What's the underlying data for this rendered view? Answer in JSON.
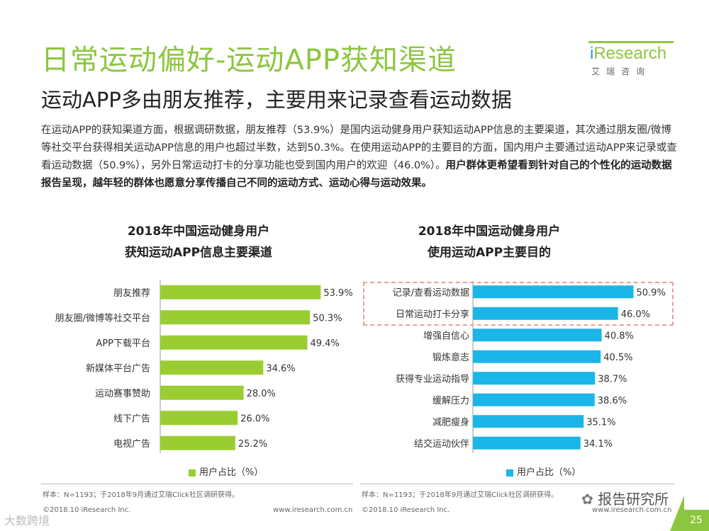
{
  "header": {
    "title": "日常运动偏好-运动APP获知渠道",
    "subtitle": "运动APP多由朋友推荐，主要用来记录查看运动数据",
    "logo_word_i": "i",
    "logo_word_rest": "Research",
    "logo_cn": "艾瑞咨询"
  },
  "body": {
    "text_plain": "在运动APP的获知渠道方面，根据调研数据，朋友推荐（53.9%）是国内运动健身用户获知运动APP信息的主要渠道，其次通过朋友圈/微博等社交平台获得相关运动APP信息的用户也超过半数，达到50.3%。在使用运动APP的主要目的方面，国内用户主要通过运动APP来记录或查看运动数据（50.9%），另外日常运动打卡的分享功能也受到国内用户的欢迎（46.0%）。",
    "text_bold": "用户群体更希望看到针对自己的个性化的运动数据报告呈现，越年轻的群体也愿意分享传播自己不同的运动方式、运动心得与运动效果。"
  },
  "chart_data": [
    {
      "type": "bar",
      "orientation": "horizontal",
      "title_line1": "2018年中国运动健身用户",
      "title_line2": "获知运动APP信息主要渠道",
      "categories": [
        "朋友推荐",
        "朋友圈/微博等社交平台",
        "APP下载平台",
        "新媒体平台广告",
        "运动赛事赞助",
        "线下广告",
        "电视广告"
      ],
      "values": [
        53.9,
        50.3,
        49.4,
        34.6,
        28.0,
        26.0,
        25.2
      ],
      "value_labels": [
        "53.9%",
        "50.3%",
        "49.4%",
        "34.6%",
        "28.0%",
        "26.0%",
        "25.2%"
      ],
      "xlim": [
        0,
        60
      ],
      "legend": "用户占比（%）",
      "color": "#9acd32"
    },
    {
      "type": "bar",
      "orientation": "horizontal",
      "title_line1": "2018年中国运动健身用户",
      "title_line2": "使用运动APP主要目的",
      "categories": [
        "记录/查看运动数据",
        "日常运动打卡分享",
        "增强自信心",
        "锻炼意志",
        "获得专业运动指导",
        "缓解压力",
        "减肥瘦身",
        "结交运动伙伴"
      ],
      "values": [
        50.9,
        46.0,
        40.8,
        40.5,
        38.7,
        38.6,
        35.1,
        34.1
      ],
      "value_labels": [
        "50.9%",
        "46.0%",
        "40.8%",
        "40.5%",
        "38.7%",
        "38.6%",
        "35.1%",
        "34.1%"
      ],
      "xlim": [
        0,
        60
      ],
      "legend": "用户占比（%）",
      "color": "#1bb5e8"
    }
  ],
  "footer": {
    "left_note": "样本：N=1193；于2018年9月通过艾瑞Click社区调研获得。",
    "left_copyright": "©2018.10 iResearch Inc.",
    "left_url": "www.iresearch.com.cn",
    "right_note": "样本：N=1193；于2018年9月通过艾瑞Click社区调研获得。",
    "right_copyright": "©2018.10 iResearch Inc.",
    "right_url": "www.iresearch.com.cn",
    "watermark": "报告研究所",
    "page_number": "25",
    "bottom_left_mark": "大数跨境"
  }
}
